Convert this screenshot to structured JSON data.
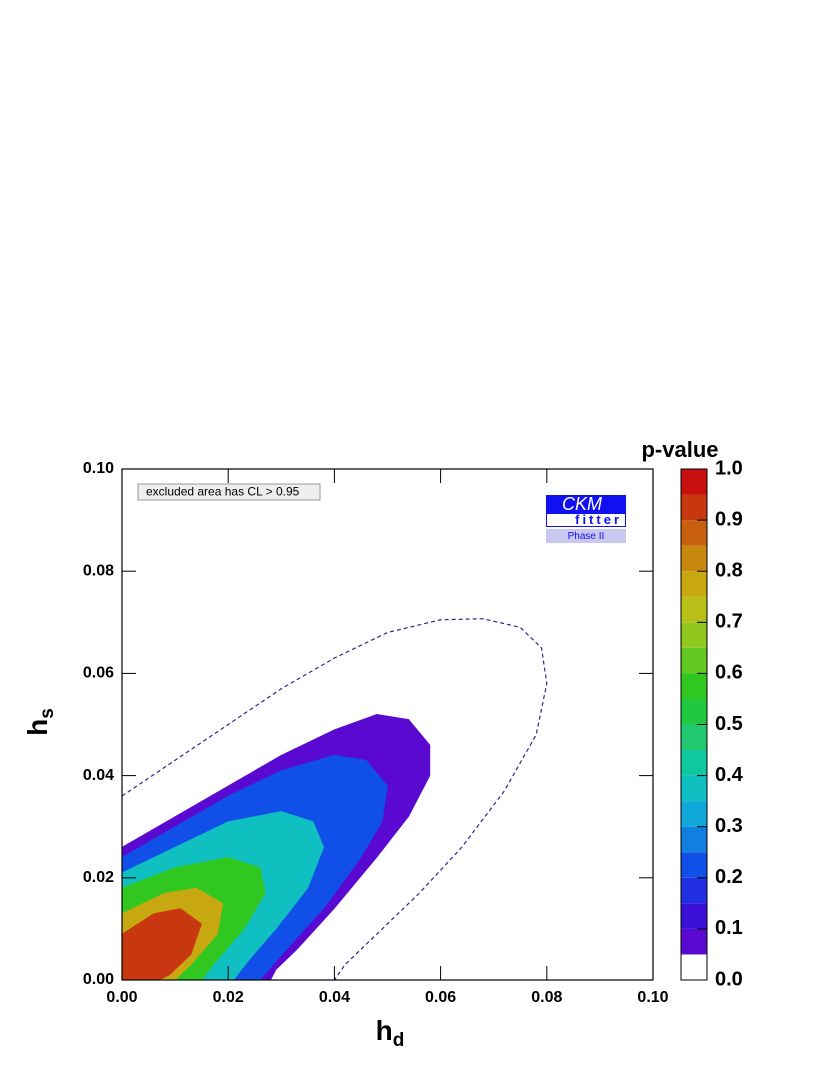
{
  "chart_data": {
    "type": "contour",
    "xlabel": "h",
    "xlabel_sub": "d",
    "ylabel": "h",
    "ylabel_sub": "s",
    "annotation": "excluded area has CL > 0.95",
    "logo": {
      "main": "CKM",
      "sub": "fitter",
      "phase": "Phase II"
    },
    "xlim": [
      0,
      0.1
    ],
    "ylim": [
      0,
      0.1
    ],
    "xticks": [
      {
        "value": 0,
        "label": "0.00"
      },
      {
        "value": 0.02,
        "label": "0.02"
      },
      {
        "value": 0.04,
        "label": "0.04"
      },
      {
        "value": 0.06,
        "label": "0.06"
      },
      {
        "value": 0.08,
        "label": "0.08"
      },
      {
        "value": 0.1,
        "label": "0.10"
      }
    ],
    "yticks": [
      {
        "value": 0,
        "label": "0.00"
      },
      {
        "value": 0.02,
        "label": "0.02"
      },
      {
        "value": 0.04,
        "label": "0.04"
      },
      {
        "value": 0.06,
        "label": "0.06"
      },
      {
        "value": 0.08,
        "label": "0.08"
      },
      {
        "value": 0.1,
        "label": "0.10"
      }
    ],
    "contours": [
      {
        "level": 0.05,
        "color": "#5a0ad0",
        "x": [
          0,
          0.01,
          0.02,
          0.03,
          0.04,
          0.048,
          0.054,
          0.058,
          0.058,
          0.054,
          0.048,
          0.04,
          0.033,
          0.029,
          0.028,
          0
        ],
        "y": [
          0.026,
          0.032,
          0.038,
          0.044,
          0.049,
          0.052,
          0.051,
          0.046,
          0.04,
          0.032,
          0.024,
          0.014,
          0.006,
          0.002,
          0,
          0
        ]
      },
      {
        "level": 0.2,
        "color": "#1050e8",
        "x": [
          0,
          0.01,
          0.02,
          0.03,
          0.04,
          0.046,
          0.05,
          0.049,
          0.045,
          0.038,
          0.031,
          0.026,
          0
        ],
        "y": [
          0.024,
          0.03,
          0.036,
          0.041,
          0.044,
          0.043,
          0.038,
          0.031,
          0.024,
          0.014,
          0.006,
          0,
          0
        ]
      },
      {
        "level": 0.4,
        "color": "#10c0c0",
        "x": [
          0,
          0.01,
          0.02,
          0.03,
          0.036,
          0.038,
          0.035,
          0.029,
          0.024,
          0.021,
          0
        ],
        "y": [
          0.021,
          0.026,
          0.031,
          0.033,
          0.031,
          0.026,
          0.018,
          0.01,
          0.004,
          0,
          0
        ]
      },
      {
        "level": 0.6,
        "color": "#30c820",
        "x": [
          0,
          0.01,
          0.02,
          0.026,
          0.027,
          0.023,
          0.018,
          0.015,
          0
        ],
        "y": [
          0.018,
          0.022,
          0.024,
          0.022,
          0.017,
          0.01,
          0.004,
          0,
          0
        ]
      },
      {
        "level": 0.8,
        "color": "#c8a810",
        "x": [
          0,
          0.008,
          0.014,
          0.019,
          0.018,
          0.013,
          0.01,
          0
        ],
        "y": [
          0.013,
          0.017,
          0.018,
          0.015,
          0.009,
          0.003,
          0,
          0
        ]
      },
      {
        "level": 0.9,
        "color": "#c83810",
        "x": [
          0,
          0.006,
          0.011,
          0.015,
          0.013,
          0.009,
          0.007,
          0
        ],
        "y": [
          0.009,
          0.013,
          0.014,
          0.011,
          0.005,
          0.001,
          0,
          0
        ]
      }
    ],
    "dashed_contour": {
      "color": "#2a2a90",
      "x": [
        0,
        0.01,
        0.02,
        0.03,
        0.04,
        0.05,
        0.06,
        0.068,
        0.075,
        0.079,
        0.08,
        0.078,
        0.072,
        0.064,
        0.056,
        0.048,
        0.042,
        0.04
      ],
      "y": [
        0.036,
        0.043,
        0.05,
        0.057,
        0.063,
        0.068,
        0.0705,
        0.0707,
        0.069,
        0.065,
        0.058,
        0.048,
        0.037,
        0.026,
        0.017,
        0.009,
        0.003,
        0
      ]
    },
    "colorbar": {
      "title": "p-value",
      "lim": [
        0,
        1
      ],
      "levels": [
        0,
        0.05,
        0.1,
        0.15,
        0.2,
        0.25,
        0.3,
        0.35,
        0.4,
        0.45,
        0.5,
        0.55,
        0.6,
        0.65,
        0.7,
        0.75,
        0.8,
        0.85,
        0.9,
        0.95,
        1
      ],
      "colors": [
        "#ffffff",
        "#5a0ad0",
        "#3a10d8",
        "#2030e0",
        "#1050e8",
        "#1080e0",
        "#10a8d8",
        "#10c0c0",
        "#10c8a0",
        "#20c870",
        "#20c840",
        "#30c820",
        "#60c820",
        "#90c820",
        "#b8c018",
        "#c8a810",
        "#c88810",
        "#c86010",
        "#c83810",
        "#c81010"
      ],
      "ticks": [
        {
          "value": 0,
          "label": "0.0"
        },
        0.1,
        0.2,
        0.3,
        0.4,
        0.5,
        0.6,
        0.7,
        0.8,
        0.9,
        {
          "value": 1,
          "label": "1.0"
        }
      ]
    }
  }
}
